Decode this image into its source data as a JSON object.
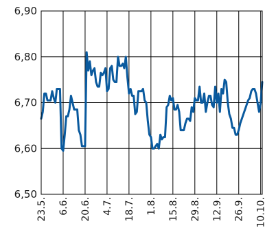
{
  "chart_data": {
    "type": "line",
    "title": "",
    "xlabel": "",
    "ylabel": "",
    "x_tick_labels": [
      "23.5.",
      "6.6.",
      "20.6.",
      "4.7.",
      "18.7.",
      "1.8.",
      "15.8.",
      "29.8.",
      "12.9.",
      "26.9.",
      "10.10."
    ],
    "y_tick_labels": [
      "6,50",
      "6,60",
      "6,70",
      "6,80",
      "6,90"
    ],
    "y_ticks": [
      6.5,
      6.6,
      6.7,
      6.8,
      6.9
    ],
    "ylim": [
      6.5,
      6.9
    ],
    "xlim": [
      0,
      141
    ],
    "x_unit": "days since first tick (23.5.)",
    "grid": true,
    "line_color": "#0a5a9e",
    "series": [
      {
        "x": [
          0,
          1,
          2,
          3,
          4,
          5,
          6,
          7,
          8,
          9,
          10,
          11,
          12,
          13,
          14,
          15,
          16,
          17,
          18,
          19,
          20,
          21,
          22,
          23,
          24,
          25,
          26,
          27,
          28,
          29,
          30,
          31,
          32,
          33,
          34,
          35,
          36,
          37,
          38,
          39,
          40,
          41,
          42,
          43,
          44,
          45,
          46,
          47,
          48,
          49,
          50,
          51,
          52,
          53,
          54,
          55,
          56,
          57,
          58,
          59,
          60,
          61,
          62,
          63,
          64,
          65,
          66,
          67,
          68,
          69,
          70,
          71,
          72,
          73,
          74,
          75,
          76,
          77,
          78,
          79,
          80,
          81,
          82,
          83,
          84,
          85,
          86,
          87,
          88,
          89,
          90,
          91,
          92,
          93,
          94,
          95,
          96,
          97,
          98,
          99,
          100,
          101,
          102,
          103,
          104,
          105,
          106,
          107,
          108,
          109,
          110,
          111,
          112,
          113,
          114,
          115,
          116,
          117,
          118,
          119,
          120,
          121,
          122,
          123,
          124,
          125,
          126,
          127,
          128,
          129,
          130,
          131,
          132,
          133,
          134,
          135,
          136,
          137,
          138,
          139,
          140,
          141
        ],
        "values": [
          6.665,
          6.68,
          6.72,
          6.72,
          6.705,
          6.705,
          6.705,
          6.725,
          6.71,
          6.7,
          6.73,
          6.73,
          6.73,
          6.6,
          6.595,
          6.63,
          6.67,
          6.67,
          6.685,
          6.715,
          6.7,
          6.685,
          6.685,
          6.685,
          6.64,
          6.63,
          6.605,
          6.605,
          6.605,
          6.81,
          6.77,
          6.79,
          6.76,
          6.77,
          6.775,
          6.745,
          6.735,
          6.735,
          6.765,
          6.76,
          6.765,
          6.775,
          6.725,
          6.73,
          6.775,
          6.78,
          6.75,
          6.745,
          6.745,
          6.8,
          6.78,
          6.78,
          6.785,
          6.775,
          6.8,
          6.755,
          6.72,
          6.73,
          6.715,
          6.715,
          6.675,
          6.68,
          6.725,
          6.725,
          6.725,
          6.73,
          6.705,
          6.7,
          6.66,
          6.63,
          6.625,
          6.6,
          6.6,
          6.605,
          6.61,
          6.6,
          6.63,
          6.62,
          6.625,
          6.625,
          6.69,
          6.695,
          6.715,
          6.705,
          6.71,
          6.685,
          6.685,
          6.695,
          6.68,
          6.64,
          6.64,
          6.64,
          6.655,
          6.665,
          6.665,
          6.66,
          6.69,
          6.68,
          6.71,
          6.705,
          6.705,
          6.735,
          6.7,
          6.7,
          6.72,
          6.68,
          6.7,
          6.715,
          6.715,
          6.695,
          6.69,
          6.735,
          6.7,
          6.72,
          6.68,
          6.73,
          6.72,
          6.75,
          6.745,
          6.7,
          6.675,
          6.665,
          6.645,
          6.645,
          6.63,
          6.63,
          6.64,
          6.655,
          6.665,
          6.675,
          6.685,
          6.695,
          6.705,
          6.71,
          6.725,
          6.73,
          6.73,
          6.72,
          6.7,
          6.68,
          6.7,
          6.745
        ]
      }
    ]
  }
}
